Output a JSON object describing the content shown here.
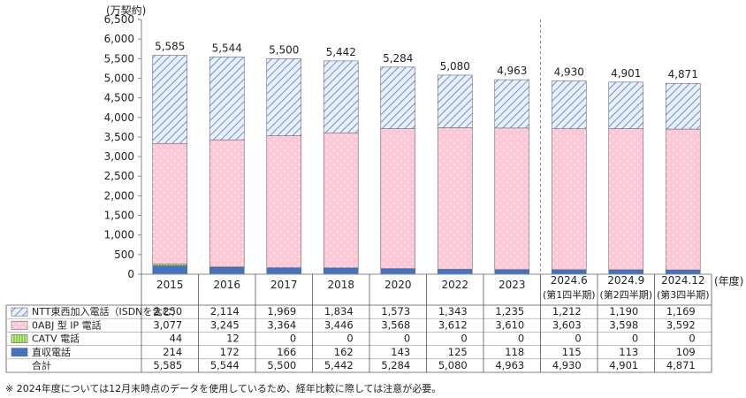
{
  "chart_data": {
    "type": "bar",
    "stacked": true,
    "y_unit_label": "(万契約)",
    "x_unit_label": "(年度)",
    "ylim": [
      0,
      6500
    ],
    "y_ticks": [
      "0",
      "500",
      "1,000",
      "1,500",
      "2,000",
      "2,500",
      "3,000",
      "3,500",
      "4,000",
      "4,500",
      "5,000",
      "5,500",
      "6,000",
      "6,500"
    ],
    "categories": [
      {
        "line1": "2015",
        "line2": ""
      },
      {
        "line1": "2016",
        "line2": ""
      },
      {
        "line1": "2017",
        "line2": ""
      },
      {
        "line1": "2018",
        "line2": ""
      },
      {
        "line1": "2020",
        "line2": ""
      },
      {
        "line1": "2022",
        "line2": ""
      },
      {
        "line1": "2023",
        "line2": ""
      },
      {
        "line1": "2024.6",
        "line2": "(第1四半期)"
      },
      {
        "line1": "2024.9",
        "line2": "(第2四半期)"
      },
      {
        "line1": "2024.12",
        "line2": "(第3四半期)"
      }
    ],
    "series": [
      {
        "name": "直収電話",
        "values": [
          214,
          172,
          166,
          162,
          143,
          125,
          118,
          115,
          113,
          109
        ],
        "labels": [
          "214",
          "172",
          "166",
          "162",
          "143",
          "125",
          "118",
          "115",
          "113",
          "109"
        ]
      },
      {
        "name": "CATV 電話",
        "values": [
          44,
          12,
          0,
          0,
          0,
          0,
          0,
          0,
          0,
          0
        ],
        "labels": [
          "44",
          "12",
          "0",
          "0",
          "0",
          "0",
          "0",
          "0",
          "0",
          "0"
        ]
      },
      {
        "name": "0ABJ 型 IP 電話",
        "values": [
          3077,
          3245,
          3364,
          3446,
          3568,
          3612,
          3610,
          3603,
          3598,
          3592
        ],
        "labels": [
          "3,077",
          "3,245",
          "3,364",
          "3,446",
          "3,568",
          "3,612",
          "3,610",
          "3,603",
          "3,598",
          "3,592"
        ]
      },
      {
        "name": "NTT東西加入電話（ISDNを含む）",
        "values": [
          2250,
          2114,
          1969,
          1834,
          1573,
          1343,
          1235,
          1212,
          1190,
          1169
        ],
        "labels": [
          "2,250",
          "2,114",
          "1,969",
          "1,834",
          "1,573",
          "1,343",
          "1,235",
          "1,212",
          "1,190",
          "1,169"
        ]
      }
    ],
    "totals": [
      5585,
      5544,
      5500,
      5442,
      5284,
      5080,
      4963,
      4930,
      4901,
      4871
    ],
    "total_labels": [
      "5,585",
      "5,544",
      "5,500",
      "5,442",
      "5,284",
      "5,080",
      "4,963",
      "4,930",
      "4,901",
      "4,871"
    ],
    "table_order": [
      3,
      2,
      1,
      0
    ],
    "total_row_label": "合計",
    "colors": {
      "direct": "#3f74c4",
      "catv_fill": "#ccee88",
      "catv_stripe": "#55aa22",
      "ip_fill": "#ffc6d6",
      "ntt_fill": "#eaf0fb",
      "ntt_stripe": "#6a8fd8",
      "axis": "#888888",
      "divider": "#888888"
    }
  },
  "footnote": "※ 2024年度については12月末時点のデータを使用しているため、経年比較に際しては注意が必要。"
}
